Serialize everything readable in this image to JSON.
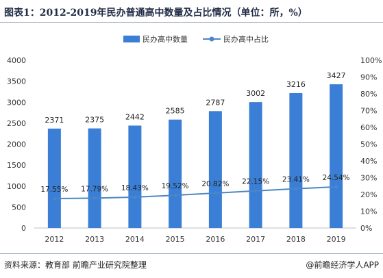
{
  "title": "图表1：2012-2019年民办普通高中数量及占比情况（单位：所，%）",
  "source": "资料来源：教育部 前瞻产业研究院整理",
  "credit": "@前瞻经济学人APP",
  "colors": {
    "bar": "#3a7fd5",
    "line": "#4a86c8",
    "axis_text": "#333333",
    "label": "#222222"
  },
  "chart_data": {
    "type": "bar",
    "categories": [
      "2012",
      "2013",
      "2014",
      "2015",
      "2016",
      "2017",
      "2018",
      "2019"
    ],
    "series": [
      {
        "name": "民办高中数量",
        "type": "bar",
        "axis": "left",
        "values": [
          2371,
          2375,
          2442,
          2585,
          2787,
          3002,
          3216,
          3427
        ],
        "labels": [
          "2371",
          "2375",
          "2442",
          "2585",
          "2787",
          "3002",
          "3216",
          "3427"
        ]
      },
      {
        "name": "民办高中占比",
        "type": "line",
        "axis": "right",
        "values": [
          17.55,
          17.79,
          18.43,
          19.52,
          20.82,
          22.15,
          23.41,
          24.54
        ],
        "labels": [
          "17.55%",
          "17.79%",
          "18.43%",
          "19.52%",
          "20.82%",
          "22.15%",
          "23.41%",
          "24.54%"
        ]
      }
    ],
    "ylim": [
      0,
      4000
    ],
    "y_ticks": [
      "0",
      "500",
      "1000",
      "1500",
      "2000",
      "2500",
      "3000",
      "3500",
      "4000"
    ],
    "y2lim": [
      0,
      100
    ],
    "y2_ticks": [
      "0%",
      "10%",
      "20%",
      "30%",
      "40%",
      "50%",
      "60%",
      "70%",
      "80%",
      "90%",
      "100%"
    ],
    "legend": "top-center",
    "grid": false
  }
}
